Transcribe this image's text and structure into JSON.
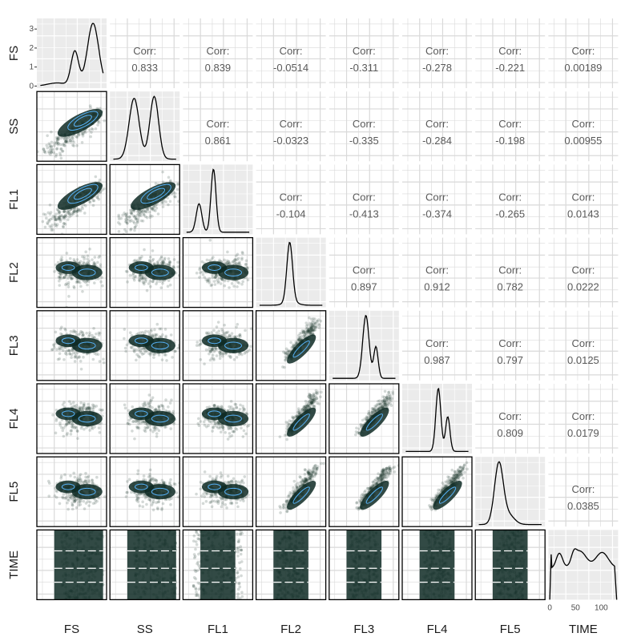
{
  "chart_data": {
    "type": "scatter",
    "variables": [
      "FS",
      "SS",
      "FL1",
      "FL2",
      "FL3",
      "FL4",
      "FL5",
      "TIME"
    ],
    "corr_label": "Corr:",
    "correlations": [
      {
        "row": "FS",
        "col": "SS",
        "value": "0.833"
      },
      {
        "row": "FS",
        "col": "FL1",
        "value": "0.839"
      },
      {
        "row": "FS",
        "col": "FL2",
        "value": "-0.0514"
      },
      {
        "row": "FS",
        "col": "FL3",
        "value": "-0.311"
      },
      {
        "row": "FS",
        "col": "FL4",
        "value": "-0.278"
      },
      {
        "row": "FS",
        "col": "FL5",
        "value": "-0.221"
      },
      {
        "row": "FS",
        "col": "TIME",
        "value": "0.00189"
      },
      {
        "row": "SS",
        "col": "FL1",
        "value": "0.861"
      },
      {
        "row": "SS",
        "col": "FL2",
        "value": "-0.0323"
      },
      {
        "row": "SS",
        "col": "FL3",
        "value": "-0.335"
      },
      {
        "row": "SS",
        "col": "FL4",
        "value": "-0.284"
      },
      {
        "row": "SS",
        "col": "FL5",
        "value": "-0.198"
      },
      {
        "row": "SS",
        "col": "TIME",
        "value": "0.00955"
      },
      {
        "row": "FL1",
        "col": "FL2",
        "value": "-0.104"
      },
      {
        "row": "FL1",
        "col": "FL3",
        "value": "-0.413"
      },
      {
        "row": "FL1",
        "col": "FL4",
        "value": "-0.374"
      },
      {
        "row": "FL1",
        "col": "FL5",
        "value": "-0.265"
      },
      {
        "row": "FL1",
        "col": "TIME",
        "value": "0.0143"
      },
      {
        "row": "FL2",
        "col": "FL3",
        "value": "0.897"
      },
      {
        "row": "FL2",
        "col": "FL4",
        "value": "0.912"
      },
      {
        "row": "FL2",
        "col": "FL5",
        "value": "0.782"
      },
      {
        "row": "FL2",
        "col": "TIME",
        "value": "0.0222"
      },
      {
        "row": "FL3",
        "col": "FL4",
        "value": "0.987"
      },
      {
        "row": "FL3",
        "col": "FL5",
        "value": "0.797"
      },
      {
        "row": "FL3",
        "col": "TIME",
        "value": "0.0125"
      },
      {
        "row": "FL4",
        "col": "FL5",
        "value": "0.809"
      },
      {
        "row": "FL4",
        "col": "TIME",
        "value": "0.0179"
      },
      {
        "row": "FL5",
        "col": "TIME",
        "value": "0.0385"
      }
    ],
    "fs_density_ylim": [
      0,
      3.3
    ],
    "fs_density_yticks": [
      "0",
      "1",
      "2",
      "3"
    ],
    "time_density_xlim": [
      0,
      130
    ],
    "time_density_xticks": [
      "0",
      "50",
      "100"
    ],
    "diagonal_density_shapes": {
      "FS": [
        {
          "mu": 0.55,
          "sd": 0.06,
          "w": 0.55
        },
        {
          "mu": 0.84,
          "sd": 0.09,
          "w": 1.0
        },
        {
          "mu": 0.27,
          "sd": 0.15,
          "w": 0.05
        }
      ],
      "SS": [
        {
          "mu": 0.33,
          "sd": 0.08,
          "w": 0.95
        },
        {
          "mu": 0.65,
          "sd": 0.07,
          "w": 0.98
        }
      ],
      "FL1": [
        {
          "mu": 0.2,
          "sd": 0.045,
          "w": 0.45
        },
        {
          "mu": 0.43,
          "sd": 0.04,
          "w": 1.0
        }
      ],
      "FL2": [
        {
          "mu": 0.48,
          "sd": 0.045,
          "w": 1.0
        },
        {
          "mu": 0.5,
          "sd": 0.1,
          "w": 0.06
        }
      ],
      "FL3": [
        {
          "mu": 0.53,
          "sd": 0.05,
          "w": 1.0
        },
        {
          "mu": 0.69,
          "sd": 0.035,
          "w": 0.5
        }
      ],
      "FL4": [
        {
          "mu": 0.52,
          "sd": 0.04,
          "w": 1.0
        },
        {
          "mu": 0.67,
          "sd": 0.035,
          "w": 0.55
        }
      ],
      "FL5": [
        {
          "mu": 0.32,
          "sd": 0.07,
          "w": 1.0
        },
        {
          "mu": 0.48,
          "sd": 0.09,
          "w": 0.15
        }
      ],
      "TIME": [
        {
          "mu": 0.12,
          "sd": 0.05,
          "w": 0.55
        },
        {
          "mu": 0.45,
          "sd": 0.1,
          "w": 0.62
        },
        {
          "mu": 0.8,
          "sd": 0.1,
          "w": 0.58
        },
        {
          "mu": 0.35,
          "sd": 0.04,
          "w": 0.3
        }
      ]
    },
    "colors": {
      "panel_bg": "#ebebeb",
      "grid": "#ffffff",
      "corr_grid": "#d9d9d9",
      "density_line": "#000000",
      "scatter_point": "#0e2a24",
      "contour": "#56b1f7",
      "panel_border": "#000000"
    }
  }
}
